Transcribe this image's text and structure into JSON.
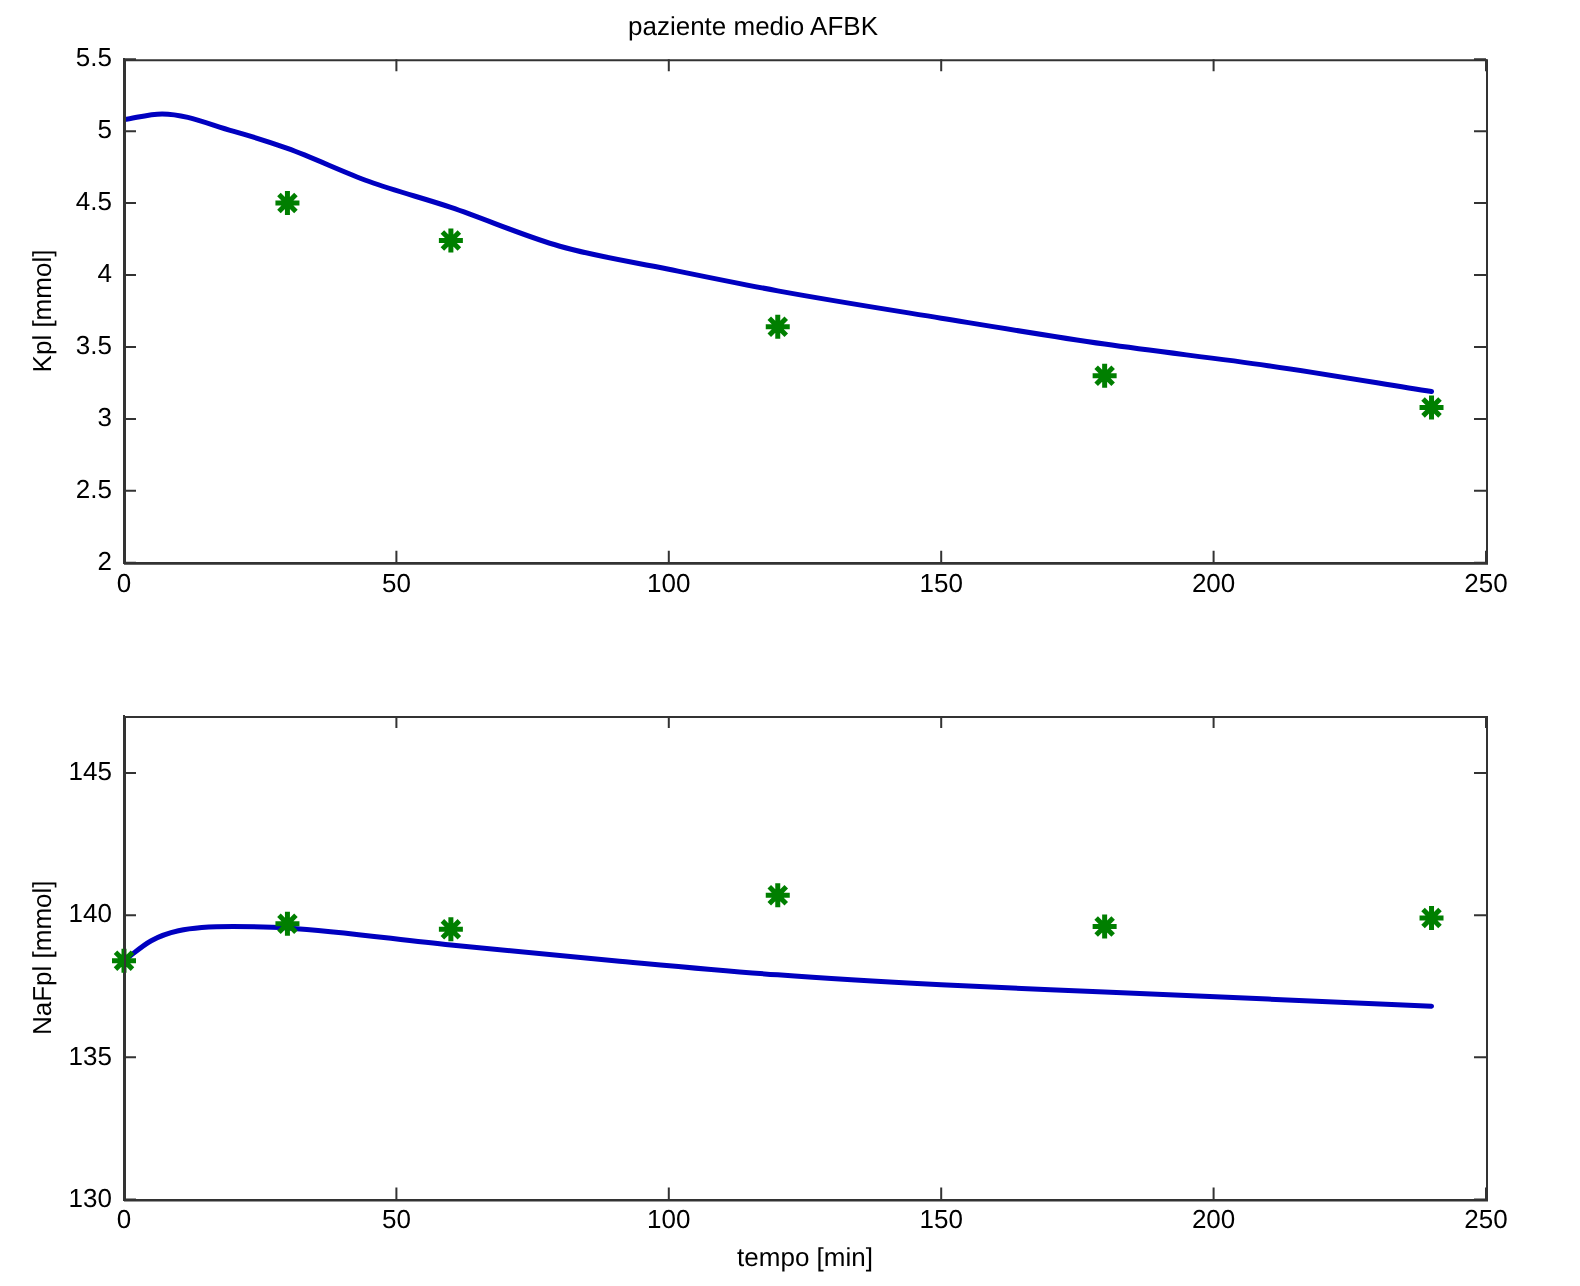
{
  "chart_data": [
    {
      "type": "line",
      "title": "paziente medio AFBK",
      "ylabel": "Kpl [mmol]",
      "xlim": [
        0,
        250
      ],
      "xticks": [
        0,
        50,
        100,
        150,
        200,
        250
      ],
      "ylim": [
        2,
        5.5
      ],
      "yticks": [
        2,
        2.5,
        3,
        3.5,
        4,
        4.5,
        5,
        5.5
      ],
      "grid": false,
      "legend": false,
      "series": [
        {
          "type": "line",
          "color": "#0000c0",
          "marker": "none",
          "line_style": "solid",
          "x": [
            0,
            7,
            20,
            30,
            45,
            60,
            80,
            100,
            120,
            150,
            180,
            210,
            240
          ],
          "values": [
            5.08,
            5.12,
            5.0,
            4.88,
            4.65,
            4.47,
            4.2,
            4.04,
            3.89,
            3.7,
            3.52,
            3.37,
            3.19
          ]
        },
        {
          "type": "scatter",
          "color": "#007f00",
          "marker": "cross",
          "x": [
            30,
            60,
            120,
            180,
            240
          ],
          "values": [
            4.5,
            4.24,
            3.64,
            3.3,
            3.08
          ]
        }
      ]
    },
    {
      "type": "line",
      "xlabel": "tempo [min]",
      "ylabel": "NaFpl [mmol]",
      "xlim": [
        0,
        250
      ],
      "xticks": [
        0,
        50,
        100,
        150,
        200,
        250
      ],
      "ylim": [
        130,
        147
      ],
      "yticks": [
        130,
        135,
        140,
        145
      ],
      "grid": false,
      "legend": false,
      "series": [
        {
          "type": "line",
          "color": "#0000c0",
          "marker": "none",
          "line_style": "solid",
          "x": [
            0,
            5,
            10,
            20,
            30,
            60,
            90,
            120,
            150,
            180,
            210,
            240
          ],
          "values": [
            138.4,
            139.1,
            139.45,
            139.6,
            139.55,
            138.95,
            138.4,
            137.9,
            137.55,
            137.3,
            137.05,
            136.8
          ]
        },
        {
          "type": "scatter",
          "color": "#007f00",
          "marker": "cross",
          "x": [
            0,
            30,
            60,
            120,
            180,
            240
          ],
          "values": [
            138.4,
            139.7,
            139.5,
            140.7,
            139.6,
            139.9
          ]
        }
      ]
    }
  ]
}
